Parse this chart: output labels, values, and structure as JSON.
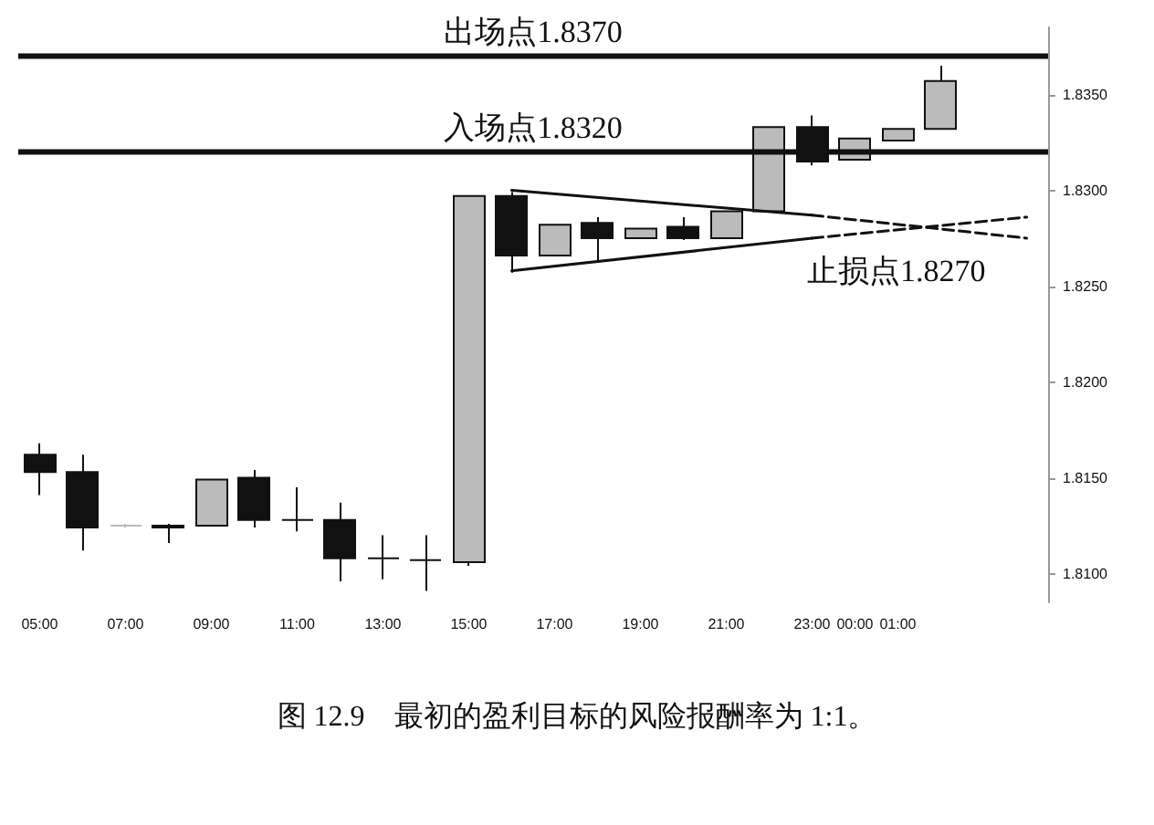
{
  "chart_data": {
    "type": "candlestick",
    "categories": [
      "05:00",
      null,
      "07:00",
      null,
      "09:00",
      null,
      "11:00",
      null,
      "13:00",
      null,
      "15:00",
      null,
      "17:00",
      null,
      "19:00",
      null,
      "21:00",
      null,
      "23:00",
      "00:00",
      "01:00",
      null,
      null,
      null
    ],
    "series": [
      {
        "type": "candlestick",
        "ohlc": [
          [
            1.8162,
            1.8168,
            1.8141,
            1.8153
          ],
          [
            1.8153,
            1.8162,
            1.8112,
            1.8124
          ],
          [
            1.8125,
            1.8126,
            1.8124,
            1.8125
          ],
          [
            1.8124,
            1.8126,
            1.8116,
            1.8125
          ],
          [
            1.8125,
            1.8149,
            1.8125,
            1.8149
          ],
          [
            1.815,
            1.8154,
            1.8124,
            1.8128
          ],
          [
            1.8128,
            1.8145,
            1.8122,
            1.8128
          ],
          [
            1.8128,
            1.8137,
            1.8096,
            1.8108
          ],
          [
            1.8108,
            1.812,
            1.8097,
            1.8108
          ],
          [
            1.8107,
            1.812,
            1.8091,
            1.8107
          ],
          [
            1.8106,
            1.8297,
            1.8104,
            1.8297
          ],
          [
            1.8297,
            1.8299,
            1.8257,
            1.8266
          ],
          [
            1.8266,
            1.8282,
            1.8266,
            1.8282
          ],
          [
            1.8283,
            1.8286,
            1.8263,
            1.8275
          ],
          [
            1.8275,
            1.828,
            1.8275,
            1.828
          ],
          [
            1.8281,
            1.8286,
            1.8274,
            1.8275
          ],
          [
            1.8275,
            1.8289,
            1.8275,
            1.8289
          ],
          [
            1.8289,
            1.8333,
            1.8289,
            1.8333
          ],
          [
            1.8333,
            1.8339,
            1.8313,
            1.8315
          ],
          [
            1.8316,
            1.8327,
            1.8316,
            1.8327
          ],
          [
            1.8326,
            1.8332,
            1.8326,
            1.8332
          ],
          [
            1.8332,
            1.8365,
            1.8332,
            1.8357
          ],
          null,
          null
        ],
        "colors": [
          "#111111",
          "#111111",
          "#bbbbbb",
          "#bbbbbb",
          "#bbbbbb",
          "#111111",
          "#111111",
          "#111111",
          "#111111",
          "#111111",
          "#bbbbbb",
          "#111111",
          "#bbbbbb",
          "#111111",
          "#bbbbbb",
          "#111111",
          "#bbbbbb",
          "#bbbbbb",
          "#111111",
          "#bbbbbb",
          "#bbbbbb",
          "#bbbbbb",
          null,
          null
        ]
      },
      {
        "type": "line",
        "color": "#111111",
        "line_style": "solid",
        "values": [
          null,
          null,
          null,
          null,
          null,
          null,
          null,
          null,
          null,
          null,
          null,
          1.83,
          null,
          null,
          null,
          null,
          null,
          null,
          1.8287,
          null,
          null,
          null,
          null,
          null
        ]
      },
      {
        "type": "line",
        "color": "#111111",
        "line_style": "solid",
        "values": [
          null,
          null,
          null,
          null,
          null,
          null,
          null,
          null,
          null,
          null,
          null,
          1.8258,
          null,
          null,
          null,
          null,
          null,
          null,
          1.8275,
          null,
          null,
          null,
          null,
          null
        ]
      },
      {
        "type": "line",
        "color": "#111111",
        "line_style": "dashed",
        "values": [
          null,
          null,
          null,
          null,
          null,
          null,
          null,
          null,
          null,
          null,
          null,
          null,
          null,
          null,
          null,
          null,
          null,
          null,
          1.8287,
          null,
          null,
          null,
          null,
          1.8275
        ]
      },
      {
        "type": "line",
        "color": "#111111",
        "line_style": "dashed",
        "values": [
          null,
          null,
          null,
          null,
          null,
          null,
          null,
          null,
          null,
          null,
          null,
          null,
          null,
          null,
          null,
          null,
          null,
          null,
          1.8275,
          null,
          null,
          null,
          null,
          1.8286
        ]
      }
    ],
    "ylim": [
      1.8085,
      1.8385
    ],
    "yticks": [
      {
        "value": 1.81,
        "label": "1.8100"
      },
      {
        "value": 1.815,
        "label": "1.8150"
      },
      {
        "value": 1.82,
        "label": "1.8200"
      },
      {
        "value": 1.825,
        "label": "1.8250"
      },
      {
        "value": 1.83,
        "label": "1.8300"
      },
      {
        "value": 1.835,
        "label": "1.8350"
      }
    ],
    "ref_lines": [
      {
        "axis": "y",
        "value": 1.837,
        "label": "出场点1.8370",
        "color": "#111111"
      },
      {
        "axis": "y",
        "value": 1.832,
        "label": "入场点1.8320",
        "color": "#111111"
      }
    ],
    "annotations": [
      "止损点1.8270",
      "图 12.9　最初的盈利目标的风险报酬率为 1:1。"
    ],
    "grid": false,
    "marker": "none"
  }
}
